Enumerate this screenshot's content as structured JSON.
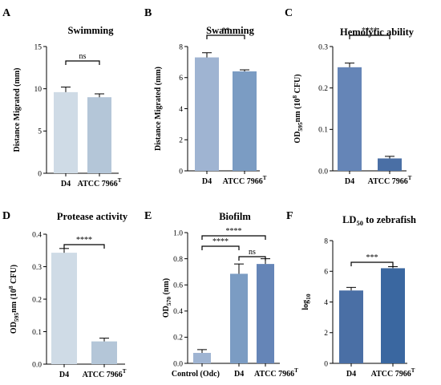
{
  "chart_data": [
    {
      "type": "bar",
      "panel_label": "A",
      "title": "Swimming",
      "ylabel": "Distance Migrated (mm)",
      "categories": [
        "D4",
        "ATCC 7966"
      ],
      "category_superscripts": [
        "",
        "T"
      ],
      "values": [
        9.6,
        9.0
      ],
      "errors": [
        0.6,
        0.4
      ],
      "colors": [
        "#cfdbe6",
        "#b4c6d8"
      ],
      "ylim": [
        0,
        15
      ],
      "yticks": [
        0,
        5,
        10,
        15
      ],
      "ytick_labels": [
        "0",
        "5",
        "10",
        "15"
      ],
      "significance": [
        {
          "from": 0,
          "to": 1,
          "label": "ns"
        }
      ]
    },
    {
      "type": "bar",
      "panel_label": "B",
      "title": "Swamming",
      "ylabel": "Distance Migrated (mm)",
      "categories": [
        "D4",
        "ATCC 7966"
      ],
      "category_superscripts": [
        "",
        "T"
      ],
      "values": [
        7.3,
        6.4
      ],
      "errors": [
        0.3,
        0.1
      ],
      "colors": [
        "#9fb4d2",
        "#7b9cc3"
      ],
      "ylim": [
        0,
        8
      ],
      "yticks": [
        0,
        2,
        4,
        6,
        8
      ],
      "ytick_labels": [
        "0",
        "2",
        "4",
        "6",
        "8"
      ],
      "significance": [
        {
          "from": 0,
          "to": 1,
          "label": "**"
        }
      ]
    },
    {
      "type": "bar",
      "panel_label": "C",
      "title": "Hemolytic ability",
      "ylabel": "OD595nm (10^8 CFU)",
      "ylabel_parts": {
        "main": "OD",
        "sub": "595",
        "mid": "nm (10",
        "sup": "8",
        "end": " CFU)"
      },
      "categories": [
        "D4",
        "ATCC 7966"
      ],
      "category_superscripts": [
        "",
        "T"
      ],
      "values": [
        0.25,
        0.03
      ],
      "errors": [
        0.01,
        0.005
      ],
      "colors": [
        "#6585b7",
        "#4a6fa5"
      ],
      "ylim": [
        0,
        0.3
      ],
      "yticks": [
        0,
        0.1,
        0.2,
        0.3
      ],
      "ytick_labels": [
        "0.0",
        "0.1",
        "0.2",
        "0.3"
      ],
      "significance": [
        {
          "from": 0,
          "to": 1,
          "label": "****"
        }
      ]
    },
    {
      "type": "bar",
      "panel_label": "D",
      "title": "Protease activity",
      "ylabel": "OD595nm (10^8 CFU)",
      "ylabel_parts": {
        "main": "OD",
        "sub": "595",
        "mid": "nm (10",
        "sup": "8",
        "end": " CFU)"
      },
      "categories": [
        "D4",
        "ATCC 7966"
      ],
      "category_superscripts": [
        "",
        "T"
      ],
      "values": [
        0.343,
        0.07
      ],
      "errors": [
        0.013,
        0.01
      ],
      "colors": [
        "#cfdbe6",
        "#b4c6d8"
      ],
      "ylim": [
        0,
        0.4
      ],
      "yticks": [
        0,
        0.1,
        0.2,
        0.3,
        0.4
      ],
      "ytick_labels": [
        "0.0",
        "0.1",
        "0.2",
        "0.3",
        "0.4"
      ],
      "significance": [
        {
          "from": 0,
          "to": 1,
          "label": "****"
        }
      ]
    },
    {
      "type": "bar",
      "panel_label": "E",
      "title": "Biofilm",
      "ylabel": "OD570 (nm)",
      "ylabel_parts": {
        "main": "OD",
        "sub": "570",
        "mid": " (nm)",
        "sup": "",
        "end": ""
      },
      "categories": [
        "Control (Odc)",
        "D4",
        "ATCC 7966"
      ],
      "category_superscripts": [
        "",
        "",
        "T"
      ],
      "values": [
        0.08,
        0.685,
        0.76
      ],
      "errors": [
        0.025,
        0.075,
        0.04
      ],
      "colors": [
        "#9fb4d2",
        "#7b9cc3",
        "#6585b7"
      ],
      "ylim": [
        0,
        1.0
      ],
      "yticks": [
        0,
        0.2,
        0.4,
        0.6,
        0.8,
        1.0
      ],
      "ytick_labels": [
        "0.0",
        "0.2",
        "0.4",
        "0.6",
        "0.8",
        "1.0"
      ],
      "significance": [
        {
          "from": 0,
          "to": 2,
          "label": "****"
        },
        {
          "from": 0,
          "to": 1,
          "label": "****"
        },
        {
          "from": 1,
          "to": 2,
          "label": "ns"
        }
      ]
    },
    {
      "type": "bar",
      "panel_label": "F",
      "title": "LD50 to zebrafish",
      "title_parts": {
        "main": "LD",
        "sub": "50",
        "end": " to zebrafish"
      },
      "ylabel": "log10",
      "ylabel_parts": {
        "main": "log",
        "sub": "10",
        "mid": "",
        "sup": "",
        "end": ""
      },
      "categories": [
        "D4",
        "ATCC 7966"
      ],
      "category_superscripts": [
        "",
        "T"
      ],
      "values": [
        4.75,
        6.2
      ],
      "errors": [
        0.2,
        0.1
      ],
      "colors": [
        "#4a6fa5",
        "#3a67a0"
      ],
      "ylim": [
        0,
        8
      ],
      "yticks": [
        0,
        2,
        4,
        6,
        8
      ],
      "ytick_labels": [
        "0",
        "2",
        "4",
        "6",
        "8"
      ],
      "significance": [
        {
          "from": 0,
          "to": 1,
          "label": "***"
        }
      ]
    }
  ]
}
